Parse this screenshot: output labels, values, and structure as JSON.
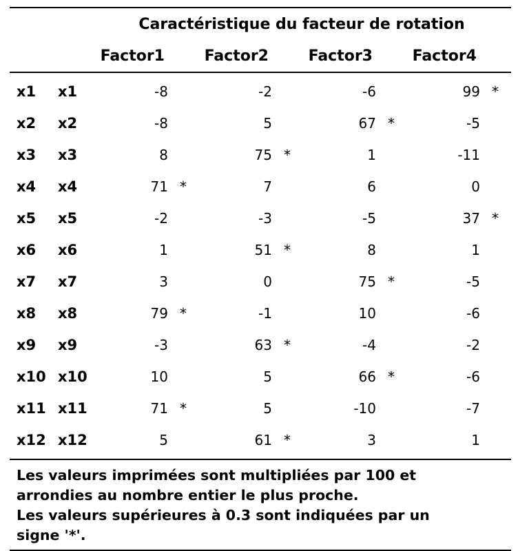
{
  "table": {
    "title": "Caractéristique du facteur de rotation",
    "headers": [
      "Factor1",
      "Factor2",
      "Factor3",
      "Factor4"
    ],
    "rows": [
      {
        "var": "x1",
        "label": "x1",
        "cells": [
          {
            "v": "-8",
            "s": ""
          },
          {
            "v": "-2",
            "s": ""
          },
          {
            "v": "-6",
            "s": ""
          },
          {
            "v": "99",
            "s": "*"
          }
        ]
      },
      {
        "var": "x2",
        "label": "x2",
        "cells": [
          {
            "v": "-8",
            "s": ""
          },
          {
            "v": "5",
            "s": ""
          },
          {
            "v": "67",
            "s": "*"
          },
          {
            "v": "-5",
            "s": ""
          }
        ]
      },
      {
        "var": "x3",
        "label": "x3",
        "cells": [
          {
            "v": "8",
            "s": ""
          },
          {
            "v": "75",
            "s": "*"
          },
          {
            "v": "1",
            "s": ""
          },
          {
            "v": "-11",
            "s": ""
          }
        ]
      },
      {
        "var": "x4",
        "label": "x4",
        "cells": [
          {
            "v": "71",
            "s": "*"
          },
          {
            "v": "7",
            "s": ""
          },
          {
            "v": "6",
            "s": ""
          },
          {
            "v": "0",
            "s": ""
          }
        ]
      },
      {
        "var": "x5",
        "label": "x5",
        "cells": [
          {
            "v": "-2",
            "s": ""
          },
          {
            "v": "-3",
            "s": ""
          },
          {
            "v": "-5",
            "s": ""
          },
          {
            "v": "37",
            "s": "*"
          }
        ]
      },
      {
        "var": "x6",
        "label": "x6",
        "cells": [
          {
            "v": "1",
            "s": ""
          },
          {
            "v": "51",
            "s": "*"
          },
          {
            "v": "8",
            "s": ""
          },
          {
            "v": "1",
            "s": ""
          }
        ]
      },
      {
        "var": "x7",
        "label": "x7",
        "cells": [
          {
            "v": "3",
            "s": ""
          },
          {
            "v": "0",
            "s": ""
          },
          {
            "v": "75",
            "s": "*"
          },
          {
            "v": "-5",
            "s": ""
          }
        ]
      },
      {
        "var": "x8",
        "label": "x8",
        "cells": [
          {
            "v": "79",
            "s": "*"
          },
          {
            "v": "-1",
            "s": ""
          },
          {
            "v": "10",
            "s": ""
          },
          {
            "v": "-6",
            "s": ""
          }
        ]
      },
      {
        "var": "x9",
        "label": "x9",
        "cells": [
          {
            "v": "-3",
            "s": ""
          },
          {
            "v": "63",
            "s": "*"
          },
          {
            "v": "-4",
            "s": ""
          },
          {
            "v": "-2",
            "s": ""
          }
        ]
      },
      {
        "var": "x10",
        "label": "x10",
        "cells": [
          {
            "v": "10",
            "s": ""
          },
          {
            "v": "5",
            "s": ""
          },
          {
            "v": "66",
            "s": "*"
          },
          {
            "v": "-6",
            "s": ""
          }
        ]
      },
      {
        "var": "x11",
        "label": "x11",
        "cells": [
          {
            "v": "71",
            "s": "*"
          },
          {
            "v": "5",
            "s": ""
          },
          {
            "v": "-10",
            "s": ""
          },
          {
            "v": "-7",
            "s": ""
          }
        ]
      },
      {
        "var": "x12",
        "label": "x12",
        "cells": [
          {
            "v": "5",
            "s": ""
          },
          {
            "v": "61",
            "s": "*"
          },
          {
            "v": "3",
            "s": ""
          },
          {
            "v": "1",
            "s": ""
          }
        ]
      }
    ]
  },
  "footnote": {
    "line1": "Les valeurs imprimées sont multipliées par 100 et",
    "line2": "arrondies au nombre entier le plus proche.",
    "line3": "Les valeurs supérieures à 0.3 sont indiquées par un",
    "line4": "signe '*'."
  }
}
